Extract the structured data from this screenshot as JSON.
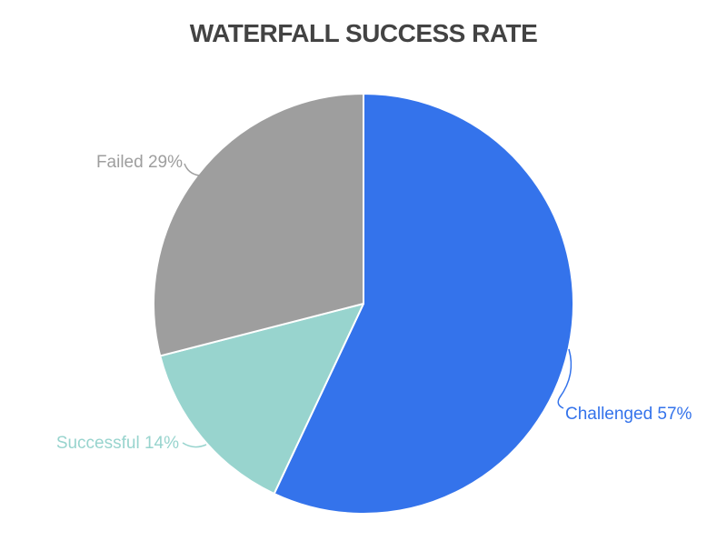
{
  "chart_data": {
    "type": "pie",
    "title": "WATERFALL SUCCESS RATE",
    "unit": "%",
    "direction": "clockwise",
    "start_angle": 0,
    "legend_position": "outside-slice-labels",
    "background_color": "#FFFFFF",
    "title_color": "#434343",
    "slice_border_color": "#FFFFFF",
    "series": [
      {
        "name": "Challenged",
        "value": 57,
        "label": "Challenged 57%",
        "color": "#3473EB"
      },
      {
        "name": "Successful",
        "value": 14,
        "label": "Successful 14%",
        "color": "#98D4CE"
      },
      {
        "name": "Failed",
        "value": 29,
        "label": "Failed 29%",
        "color": "#9E9E9E"
      }
    ]
  }
}
